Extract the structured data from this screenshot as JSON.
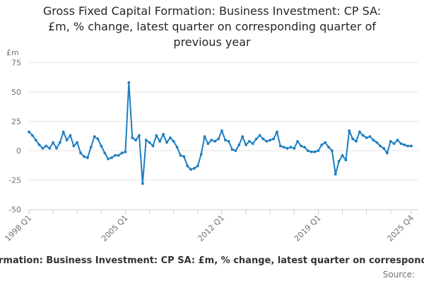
{
  "title": {
    "line1": "Gross Fixed Capital Formation: Business Investment: CP SA:",
    "line2": "£m, % change, latest quarter on corresponding quarter of",
    "line3": "previous year"
  },
  "y_axis": {
    "unit": "£m",
    "tick_labels": [
      "75",
      "50",
      "25",
      "0",
      "-25",
      "-50"
    ]
  },
  "x_axis": {
    "visible_labels": [
      "1998 Q1",
      "2005 Q1",
      "2012 Q1",
      "2019 Q1",
      "2025 Q4"
    ]
  },
  "footer": {
    "legend_visible_text": "rmation: Business Investment: CP SA: £m, % change, latest quarter on corresponding",
    "source_label": "Source:"
  },
  "colors": {
    "line": "#1c7ec3",
    "grid": "#e6e6e6",
    "axis_line": "#cdd3db",
    "tick": "#c5cedd",
    "text_muted": "#707070",
    "text_dark": "#262626"
  },
  "chart_data": {
    "type": "line",
    "title": "Gross Fixed Capital Formation: Business Investment: CP SA: £m, % change, latest quarter on corresponding quarter of previous year",
    "xlabel": "",
    "ylabel": "£m",
    "ylim": [
      -50,
      75
    ],
    "y_ticks": [
      75,
      50,
      25,
      0,
      -25,
      -50
    ],
    "grid": true,
    "legend_position": "bottom",
    "categories": [
      "1998 Q1",
      "1998 Q2",
      "1998 Q3",
      "1998 Q4",
      "1999 Q1",
      "1999 Q2",
      "1999 Q3",
      "1999 Q4",
      "2000 Q1",
      "2000 Q2",
      "2000 Q3",
      "2000 Q4",
      "2001 Q1",
      "2001 Q2",
      "2001 Q3",
      "2001 Q4",
      "2002 Q1",
      "2002 Q2",
      "2002 Q3",
      "2002 Q4",
      "2003 Q1",
      "2003 Q2",
      "2003 Q3",
      "2003 Q4",
      "2004 Q1",
      "2004 Q2",
      "2004 Q3",
      "2004 Q4",
      "2005 Q1",
      "2005 Q2",
      "2005 Q3",
      "2005 Q4",
      "2006 Q1",
      "2006 Q2",
      "2006 Q3",
      "2006 Q4",
      "2007 Q1",
      "2007 Q2",
      "2007 Q3",
      "2007 Q4",
      "2008 Q1",
      "2008 Q2",
      "2008 Q3",
      "2008 Q4",
      "2009 Q1",
      "2009 Q2",
      "2009 Q3",
      "2009 Q4",
      "2010 Q1",
      "2010 Q2",
      "2010 Q3",
      "2010 Q4",
      "2011 Q1",
      "2011 Q2",
      "2011 Q3",
      "2011 Q4",
      "2012 Q1",
      "2012 Q2",
      "2012 Q3",
      "2012 Q4",
      "2013 Q1",
      "2013 Q2",
      "2013 Q3",
      "2013 Q4",
      "2014 Q1",
      "2014 Q2",
      "2014 Q3",
      "2014 Q4",
      "2015 Q1",
      "2015 Q2",
      "2015 Q3",
      "2015 Q4",
      "2016 Q1",
      "2016 Q2",
      "2016 Q3",
      "2016 Q4",
      "2017 Q1",
      "2017 Q2",
      "2017 Q3",
      "2017 Q4",
      "2018 Q1",
      "2018 Q2",
      "2018 Q3",
      "2018 Q4",
      "2019 Q1",
      "2019 Q2",
      "2019 Q3",
      "2019 Q4",
      "2020 Q1",
      "2020 Q2",
      "2020 Q3",
      "2020 Q4",
      "2021 Q1",
      "2021 Q2",
      "2021 Q3",
      "2021 Q4",
      "2022 Q1",
      "2022 Q2",
      "2022 Q3",
      "2022 Q4",
      "2023 Q1",
      "2023 Q2",
      "2023 Q3",
      "2023 Q4",
      "2024 Q1",
      "2024 Q2",
      "2024 Q3",
      "2024 Q4",
      "2025 Q1",
      "2025 Q2",
      "2025 Q3",
      "2025 Q4"
    ],
    "values": [
      16,
      13,
      9,
      5,
      2,
      4,
      2,
      7,
      2,
      7,
      16,
      9,
      13,
      4,
      7,
      -2,
      -5,
      -6,
      3,
      12,
      10,
      4,
      -2,
      -7,
      -6,
      -4,
      -4,
      -2,
      -1,
      58,
      11,
      9,
      13,
      -28,
      9,
      7,
      4,
      13,
      8,
      14,
      7,
      11,
      8,
      3,
      -4,
      -5,
      -13,
      -16,
      -15,
      -13,
      -3,
      12,
      6,
      9,
      8,
      10,
      17,
      9,
      8,
      1,
      0,
      5,
      12,
      5,
      8,
      6,
      10,
      13,
      10,
      8,
      9,
      10,
      16,
      4,
      3,
      2,
      3,
      2,
      8,
      4,
      3,
      0,
      -1,
      -1,
      0,
      5,
      7,
      3,
      0,
      -20,
      -9,
      -4,
      -8,
      17,
      10,
      8,
      16,
      13,
      11,
      12,
      9,
      7,
      4,
      2,
      -2,
      8,
      6,
      9,
      6,
      5,
      4,
      4
    ],
    "x_tick_indices": [
      0,
      7,
      14,
      21,
      28,
      35,
      42,
      49,
      56,
      63,
      70,
      77,
      84,
      91,
      98,
      105,
      111
    ],
    "x_labeled_ticks": [
      {
        "index": 0,
        "label": "1998 Q1"
      },
      {
        "index": 28,
        "label": "2005 Q1"
      },
      {
        "index": 56,
        "label": "2012 Q1"
      },
      {
        "index": 84,
        "label": "2019 Q1"
      },
      {
        "index": 111,
        "label": "2025 Q4"
      }
    ]
  }
}
